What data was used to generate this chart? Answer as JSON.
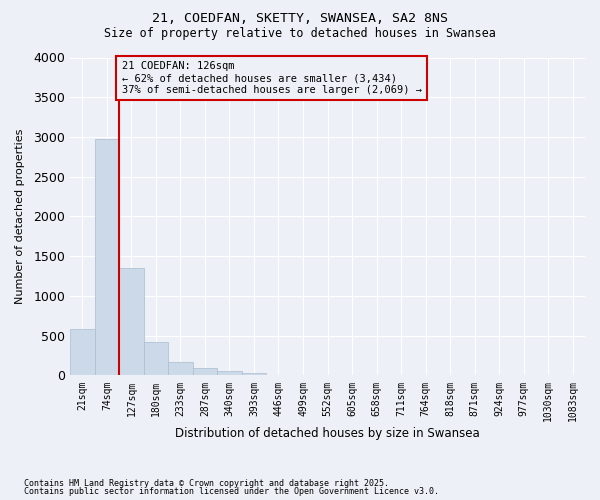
{
  "title_line1": "21, COEDFAN, SKETTY, SWANSEA, SA2 8NS",
  "title_line2": "Size of property relative to detached houses in Swansea",
  "xlabel": "Distribution of detached houses by size in Swansea",
  "ylabel": "Number of detached properties",
  "bar_color": "#ccd9e8",
  "bar_edge_color": "#aabcce",
  "background_color": "#edf1f7",
  "grid_color": "#ffffff",
  "annotation_box_color": "#cc0000",
  "annotation_line_color": "#cc0000",
  "x_labels": [
    "21sqm",
    "74sqm",
    "127sqm",
    "180sqm",
    "233sqm",
    "287sqm",
    "340sqm",
    "393sqm",
    "446sqm",
    "499sqm",
    "552sqm",
    "605sqm",
    "658sqm",
    "711sqm",
    "764sqm",
    "818sqm",
    "871sqm",
    "924sqm",
    "977sqm",
    "1030sqm",
    "1083sqm"
  ],
  "bar_values": [
    580,
    2980,
    1350,
    420,
    170,
    90,
    50,
    30,
    0,
    0,
    0,
    0,
    0,
    0,
    0,
    0,
    0,
    0,
    0,
    0,
    0
  ],
  "ylim": [
    0,
    4000
  ],
  "yticks": [
    0,
    500,
    1000,
    1500,
    2000,
    2500,
    3000,
    3500,
    4000
  ],
  "property_line_idx": 2,
  "annotation_text": "21 COEDFAN: 126sqm\n← 62% of detached houses are smaller (3,434)\n37% of semi-detached houses are larger (2,069) →",
  "footnote_line1": "Contains HM Land Registry data © Crown copyright and database right 2025.",
  "footnote_line2": "Contains public sector information licensed under the Open Government Licence v3.0."
}
